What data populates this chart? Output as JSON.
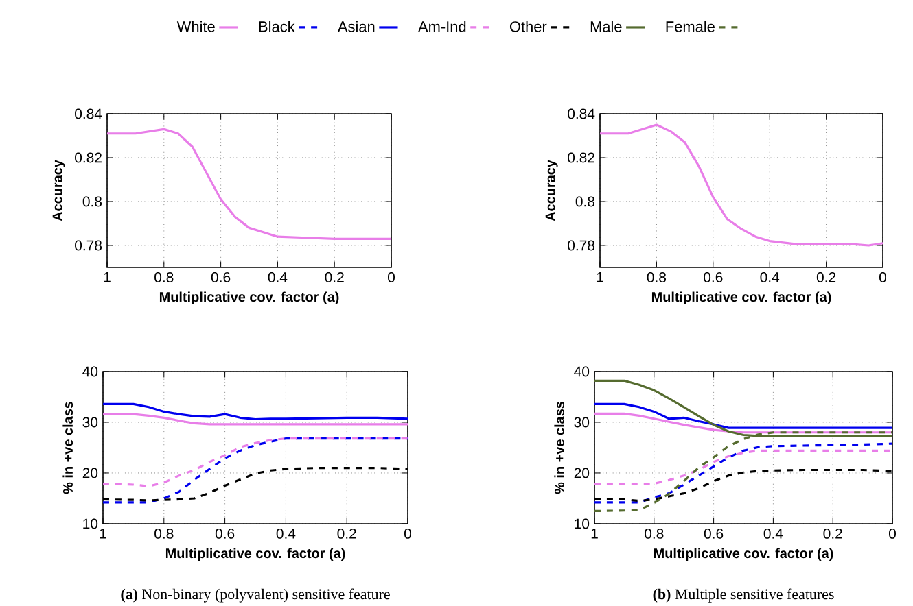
{
  "chart_data": [
    {
      "type": "line",
      "ylabel": "Accuracy",
      "xlabel": "Multiplicative cov. factor (a)",
      "xlim": [
        1,
        0
      ],
      "ylim": [
        0.77,
        0.84
      ],
      "xticks": [
        1,
        0.8,
        0.6,
        0.4,
        0.2,
        0
      ],
      "yticks": [
        0.78,
        0.8,
        0.82,
        0.84
      ],
      "grid": true,
      "x": [
        1,
        0.9,
        0.8,
        0.75,
        0.7,
        0.65,
        0.6,
        0.55,
        0.5,
        0.45,
        0.4,
        0.3,
        0.2,
        0.1,
        0
      ],
      "series": [
        {
          "color": "#e87ee8",
          "values": [
            0.831,
            0.831,
            0.833,
            0.831,
            0.825,
            0.813,
            0.801,
            0.793,
            0.788,
            0.786,
            0.784,
            0.7835,
            0.783,
            0.783,
            0.783
          ]
        }
      ]
    },
    {
      "type": "line",
      "ylabel": "Accuracy",
      "xlabel": "Multiplicative cov. factor (a)",
      "xlim": [
        1,
        0
      ],
      "ylim": [
        0.77,
        0.84
      ],
      "xticks": [
        1,
        0.8,
        0.6,
        0.4,
        0.2,
        0
      ],
      "yticks": [
        0.78,
        0.8,
        0.82,
        0.84
      ],
      "grid": true,
      "x": [
        1,
        0.9,
        0.8,
        0.75,
        0.7,
        0.65,
        0.6,
        0.55,
        0.5,
        0.45,
        0.4,
        0.3,
        0.2,
        0.1,
        0.05,
        0
      ],
      "series": [
        {
          "color": "#e87ee8",
          "values": [
            0.831,
            0.831,
            0.835,
            0.832,
            0.827,
            0.816,
            0.802,
            0.792,
            0.7875,
            0.784,
            0.782,
            0.7805,
            0.7805,
            0.7805,
            0.78,
            0.781
          ]
        }
      ]
    },
    {
      "type": "line",
      "ylabel": "% in +ve class",
      "xlabel": "Multiplicative cov. factor (a)",
      "xlim": [
        1,
        0
      ],
      "ylim": [
        10,
        40
      ],
      "xticks": [
        1,
        0.8,
        0.6,
        0.4,
        0.2,
        0
      ],
      "yticks": [
        10,
        20,
        30,
        40
      ],
      "grid": true,
      "annotations": [
        "**(a)** Non-binary (polyvalent) sensitive feature"
      ],
      "x": [
        1,
        0.9,
        0.85,
        0.8,
        0.75,
        0.7,
        0.65,
        0.6,
        0.55,
        0.5,
        0.45,
        0.4,
        0.3,
        0.2,
        0.1,
        0
      ],
      "series": [
        {
          "color": "#e87ee8",
          "line_style": "solid",
          "values": [
            31.6,
            31.6,
            31.3,
            30.9,
            30.3,
            29.8,
            29.6,
            29.6,
            29.6,
            29.6,
            29.6,
            29.6,
            29.6,
            29.6,
            29.6,
            29.6
          ]
        },
        {
          "color": "#0000ee",
          "line_style": "dashed",
          "values": [
            14.2,
            14.2,
            14.2,
            15,
            16.3,
            18.7,
            20.8,
            22.9,
            24.4,
            25.5,
            26.2,
            26.8,
            26.8,
            26.8,
            26.8,
            26.8
          ]
        },
        {
          "color": "#0000ee",
          "line_style": "solid",
          "values": [
            33.6,
            33.6,
            33.0,
            32.1,
            31.6,
            31.2,
            31.1,
            31.6,
            30.9,
            30.6,
            30.7,
            30.7,
            30.8,
            30.9,
            30.9,
            30.7
          ]
        },
        {
          "color": "#e87ee8",
          "line_style": "dashed",
          "values": [
            17.9,
            17.7,
            17.4,
            18.1,
            19.5,
            20.6,
            22.2,
            23.5,
            25.1,
            25.9,
            26.5,
            26.8,
            26.8,
            26.8,
            26.8,
            26.8
          ]
        },
        {
          "color": "#000000",
          "line_style": "dashed",
          "values": [
            14.8,
            14.7,
            14.6,
            14.7,
            14.8,
            15.0,
            16.1,
            17.5,
            18.7,
            19.9,
            20.5,
            20.8,
            21.0,
            21.0,
            21.0,
            20.8
          ]
        }
      ]
    },
    {
      "type": "line",
      "ylabel": "% in +ve class",
      "xlabel": "Multiplicative cov. factor (a)",
      "xlim": [
        1,
        0
      ],
      "ylim": [
        10,
        40
      ],
      "xticks": [
        1,
        0.8,
        0.6,
        0.4,
        0.2,
        0
      ],
      "yticks": [
        10,
        20,
        30,
        40
      ],
      "grid": true,
      "legend": "top",
      "annotations": [
        "**(b)** Multiple sensitive features"
      ],
      "x": [
        1,
        0.9,
        0.85,
        0.8,
        0.75,
        0.7,
        0.65,
        0.6,
        0.55,
        0.5,
        0.45,
        0.4,
        0.3,
        0.2,
        0.1,
        0
      ],
      "series": [
        {
          "name": "White",
          "color": "#e87ee8",
          "line_style": "solid",
          "values": [
            31.7,
            31.7,
            31.3,
            30.7,
            30.1,
            29.5,
            29.0,
            28.5,
            28.2,
            28.0,
            28.0,
            28.0,
            28.0,
            28.0,
            28.0,
            28.0
          ]
        },
        {
          "name": "Black",
          "color": "#0000ee",
          "line_style": "dashed",
          "values": [
            14.2,
            14.2,
            14.2,
            15.2,
            16.0,
            17.7,
            19.5,
            21.3,
            23.1,
            24.4,
            25.1,
            25.3,
            25.4,
            25.5,
            25.6,
            25.8
          ]
        },
        {
          "name": "Asian",
          "color": "#0000ee",
          "line_style": "solid",
          "values": [
            33.6,
            33.6,
            33.0,
            32.1,
            30.7,
            30.9,
            30.2,
            29.6,
            28.9,
            28.9,
            28.9,
            28.9,
            28.9,
            28.9,
            28.9,
            28.9
          ]
        },
        {
          "name": "Am-Ind",
          "color": "#e87ee8",
          "line_style": "dashed",
          "values": [
            17.9,
            17.9,
            17.9,
            17.9,
            18.6,
            19.5,
            20.6,
            22.2,
            23.3,
            24.0,
            24.4,
            24.4,
            24.4,
            24.4,
            24.4,
            24.4
          ]
        },
        {
          "name": "Other",
          "color": "#000000",
          "line_style": "dashed",
          "values": [
            14.8,
            14.8,
            14.5,
            14.8,
            15.4,
            16.0,
            17.0,
            18.4,
            19.5,
            20.1,
            20.4,
            20.5,
            20.6,
            20.6,
            20.6,
            20.4
          ]
        },
        {
          "name": "Male",
          "color": "#556b2f",
          "line_style": "solid",
          "values": [
            38.2,
            38.2,
            37.4,
            36.3,
            34.7,
            33.0,
            31.2,
            29.5,
            28.2,
            27.5,
            27.3,
            27.3,
            27.3,
            27.3,
            27.3,
            27.3
          ]
        },
        {
          "name": "Female",
          "color": "#556b2f",
          "line_style": "dashed",
          "values": [
            12.5,
            12.6,
            12.7,
            14.1,
            15.9,
            18.4,
            21.1,
            23.1,
            25.3,
            26.7,
            27.6,
            28.0,
            28.0,
            28.0,
            28.0,
            28.0
          ]
        }
      ]
    }
  ]
}
